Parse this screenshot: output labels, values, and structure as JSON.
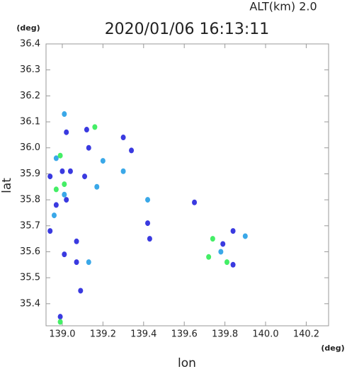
{
  "chart_data": {
    "type": "scatter",
    "title": "2020/01/06 16:13:11",
    "subtitle": "ALT(km)  2.0",
    "x_label": "lon",
    "y_label": "lat",
    "x_unit": "(deg)",
    "y_unit": "(deg)",
    "xlim": [
      138.92,
      140.31
    ],
    "ylim": [
      35.315,
      36.4
    ],
    "xticks": [
      {
        "value": 139.0,
        "label": "139.0"
      },
      139.2,
      139.4,
      139.6,
      139.8,
      {
        "value": 140.0,
        "label": "140.0"
      },
      140.2
    ],
    "yticks": [
      35.4,
      35.5,
      35.6,
      35.7,
      35.8,
      35.9,
      {
        "value": 36.0,
        "label": "36.0"
      },
      36.1,
      36.2,
      36.3,
      36.4
    ],
    "series": [
      {
        "color": "#3a3ae0",
        "x": [
          139.02,
          139.12,
          139.0,
          138.94,
          139.04,
          139.02,
          138.97,
          138.94,
          139.01,
          139.07,
          139.07,
          139.09,
          138.99,
          139.34,
          139.3,
          139.42,
          139.43,
          139.65,
          139.79,
          139.84,
          139.84,
          139.11,
          139.13
        ],
        "values": [
          36.06,
          36.07,
          35.91,
          35.89,
          35.91,
          35.8,
          35.78,
          35.68,
          35.59,
          35.64,
          35.56,
          35.45,
          35.35,
          35.99,
          36.04,
          35.71,
          35.65,
          35.79,
          35.63,
          35.55,
          35.68,
          35.89,
          36.0
        ]
      },
      {
        "color": "#3aa8e8",
        "x": [
          139.01,
          138.97,
          139.01,
          138.96,
          139.13,
          139.2,
          139.3,
          139.17,
          139.42,
          139.9,
          139.78
        ],
        "values": [
          36.13,
          35.96,
          35.82,
          35.74,
          35.56,
          35.95,
          35.91,
          35.85,
          35.8,
          35.66,
          35.6
        ]
      },
      {
        "color": "#44ee66",
        "x": [
          139.16,
          138.99,
          139.01,
          138.97,
          138.99,
          139.74,
          139.72,
          139.81
        ],
        "values": [
          36.08,
          35.97,
          35.86,
          35.84,
          35.33,
          35.65,
          35.58,
          35.56
        ]
      }
    ]
  }
}
